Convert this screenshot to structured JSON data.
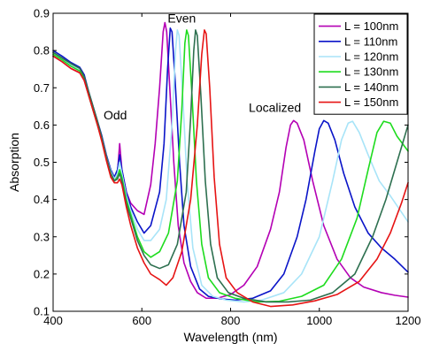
{
  "chart_data": {
    "type": "line",
    "xlabel": "Wavelength (nm)",
    "ylabel": "Absorption",
    "xlim": [
      400,
      1200
    ],
    "ylim": [
      0.1,
      0.9
    ],
    "xticks": [
      400,
      600,
      800,
      1000,
      1200
    ],
    "yticks": [
      0.1,
      0.2,
      0.3,
      0.4,
      0.5,
      0.6,
      0.7,
      0.8,
      0.9
    ],
    "grid": false,
    "legend_position": "top-right",
    "annotations": [
      {
        "text": "Odd",
        "x": 540,
        "y": 0.615
      },
      {
        "text": "Even",
        "x": 690,
        "y": 0.875
      },
      {
        "text": "Localized",
        "x": 900,
        "y": 0.635
      }
    ],
    "series": [
      {
        "name": "L = 100nm",
        "color": "#b400b4",
        "points": [
          [
            400,
            0.785
          ],
          [
            420,
            0.77
          ],
          [
            440,
            0.752
          ],
          [
            460,
            0.74
          ],
          [
            470,
            0.72
          ],
          [
            480,
            0.68
          ],
          [
            490,
            0.64
          ],
          [
            500,
            0.6
          ],
          [
            510,
            0.56
          ],
          [
            520,
            0.51
          ],
          [
            530,
            0.47
          ],
          [
            538,
            0.45
          ],
          [
            545,
            0.47
          ],
          [
            550,
            0.55
          ],
          [
            555,
            0.48
          ],
          [
            565,
            0.42
          ],
          [
            575,
            0.39
          ],
          [
            590,
            0.37
          ],
          [
            605,
            0.36
          ],
          [
            620,
            0.44
          ],
          [
            630,
            0.55
          ],
          [
            640,
            0.7
          ],
          [
            648,
            0.85
          ],
          [
            652,
            0.875
          ],
          [
            656,
            0.85
          ],
          [
            662,
            0.72
          ],
          [
            672,
            0.5
          ],
          [
            682,
            0.33
          ],
          [
            695,
            0.23
          ],
          [
            710,
            0.18
          ],
          [
            725,
            0.15
          ],
          [
            745,
            0.135
          ],
          [
            770,
            0.135
          ],
          [
            800,
            0.145
          ],
          [
            830,
            0.17
          ],
          [
            860,
            0.22
          ],
          [
            890,
            0.32
          ],
          [
            910,
            0.42
          ],
          [
            925,
            0.54
          ],
          [
            935,
            0.6
          ],
          [
            942,
            0.612
          ],
          [
            950,
            0.605
          ],
          [
            965,
            0.56
          ],
          [
            985,
            0.45
          ],
          [
            1010,
            0.33
          ],
          [
            1040,
            0.24
          ],
          [
            1070,
            0.19
          ],
          [
            1100,
            0.165
          ],
          [
            1140,
            0.15
          ],
          [
            1170,
            0.143
          ],
          [
            1200,
            0.138
          ]
        ]
      },
      {
        "name": "L = 110nm",
        "color": "#0a14c8",
        "points": [
          [
            400,
            0.8
          ],
          [
            420,
            0.785
          ],
          [
            440,
            0.768
          ],
          [
            460,
            0.755
          ],
          [
            470,
            0.735
          ],
          [
            480,
            0.69
          ],
          [
            490,
            0.65
          ],
          [
            500,
            0.61
          ],
          [
            510,
            0.57
          ],
          [
            520,
            0.52
          ],
          [
            530,
            0.48
          ],
          [
            538,
            0.46
          ],
          [
            545,
            0.48
          ],
          [
            550,
            0.52
          ],
          [
            555,
            0.48
          ],
          [
            565,
            0.42
          ],
          [
            575,
            0.38
          ],
          [
            590,
            0.34
          ],
          [
            605,
            0.31
          ],
          [
            620,
            0.33
          ],
          [
            640,
            0.42
          ],
          [
            650,
            0.55
          ],
          [
            658,
            0.75
          ],
          [
            664,
            0.86
          ],
          [
            668,
            0.85
          ],
          [
            675,
            0.72
          ],
          [
            685,
            0.5
          ],
          [
            695,
            0.33
          ],
          [
            710,
            0.22
          ],
          [
            730,
            0.16
          ],
          [
            750,
            0.14
          ],
          [
            780,
            0.133
          ],
          [
            810,
            0.13
          ],
          [
            850,
            0.135
          ],
          [
            890,
            0.155
          ],
          [
            920,
            0.2
          ],
          [
            950,
            0.3
          ],
          [
            970,
            0.4
          ],
          [
            990,
            0.53
          ],
          [
            1000,
            0.59
          ],
          [
            1010,
            0.612
          ],
          [
            1020,
            0.605
          ],
          [
            1035,
            0.56
          ],
          [
            1055,
            0.47
          ],
          [
            1080,
            0.38
          ],
          [
            1110,
            0.31
          ],
          [
            1140,
            0.27
          ],
          [
            1170,
            0.24
          ],
          [
            1200,
            0.205
          ]
        ]
      },
      {
        "name": "L = 120nm",
        "color": "#a8e4f8",
        "points": [
          [
            400,
            0.795
          ],
          [
            420,
            0.78
          ],
          [
            440,
            0.762
          ],
          [
            460,
            0.748
          ],
          [
            470,
            0.728
          ],
          [
            480,
            0.685
          ],
          [
            490,
            0.645
          ],
          [
            500,
            0.605
          ],
          [
            510,
            0.565
          ],
          [
            520,
            0.515
          ],
          [
            530,
            0.475
          ],
          [
            538,
            0.455
          ],
          [
            545,
            0.47
          ],
          [
            550,
            0.5
          ],
          [
            555,
            0.47
          ],
          [
            565,
            0.41
          ],
          [
            575,
            0.37
          ],
          [
            590,
            0.32
          ],
          [
            605,
            0.29
          ],
          [
            620,
            0.29
          ],
          [
            640,
            0.32
          ],
          [
            655,
            0.4
          ],
          [
            668,
            0.6
          ],
          [
            676,
            0.8
          ],
          [
            680,
            0.855
          ],
          [
            684,
            0.84
          ],
          [
            692,
            0.68
          ],
          [
            702,
            0.45
          ],
          [
            715,
            0.27
          ],
          [
            735,
            0.17
          ],
          [
            760,
            0.14
          ],
          [
            790,
            0.13
          ],
          [
            830,
            0.125
          ],
          [
            870,
            0.13
          ],
          [
            920,
            0.15
          ],
          [
            960,
            0.2
          ],
          [
            1000,
            0.3
          ],
          [
            1030,
            0.45
          ],
          [
            1050,
            0.56
          ],
          [
            1065,
            0.605
          ],
          [
            1075,
            0.61
          ],
          [
            1090,
            0.58
          ],
          [
            1110,
            0.52
          ],
          [
            1135,
            0.45
          ],
          [
            1160,
            0.41
          ],
          [
            1200,
            0.34
          ]
        ]
      },
      {
        "name": "L = 130nm",
        "color": "#1edc1e",
        "points": [
          [
            400,
            0.79
          ],
          [
            420,
            0.775
          ],
          [
            440,
            0.758
          ],
          [
            460,
            0.745
          ],
          [
            470,
            0.725
          ],
          [
            480,
            0.68
          ],
          [
            490,
            0.64
          ],
          [
            500,
            0.6
          ],
          [
            510,
            0.56
          ],
          [
            520,
            0.51
          ],
          [
            530,
            0.47
          ],
          [
            538,
            0.45
          ],
          [
            545,
            0.46
          ],
          [
            550,
            0.48
          ],
          [
            555,
            0.46
          ],
          [
            565,
            0.4
          ],
          [
            575,
            0.36
          ],
          [
            590,
            0.3
          ],
          [
            605,
            0.26
          ],
          [
            620,
            0.245
          ],
          [
            640,
            0.26
          ],
          [
            660,
            0.31
          ],
          [
            680,
            0.45
          ],
          [
            690,
            0.64
          ],
          [
            697,
            0.82
          ],
          [
            701,
            0.855
          ],
          [
            705,
            0.84
          ],
          [
            713,
            0.68
          ],
          [
            723,
            0.45
          ],
          [
            735,
            0.28
          ],
          [
            750,
            0.19
          ],
          [
            775,
            0.15
          ],
          [
            810,
            0.135
          ],
          [
            860,
            0.125
          ],
          [
            910,
            0.127
          ],
          [
            960,
            0.14
          ],
          [
            1010,
            0.17
          ],
          [
            1050,
            0.24
          ],
          [
            1085,
            0.35
          ],
          [
            1110,
            0.48
          ],
          [
            1130,
            0.58
          ],
          [
            1145,
            0.61
          ],
          [
            1160,
            0.605
          ],
          [
            1175,
            0.57
          ],
          [
            1200,
            0.53
          ]
        ]
      },
      {
        "name": "L = 140nm",
        "color": "#2e7050",
        "points": [
          [
            400,
            0.795
          ],
          [
            420,
            0.78
          ],
          [
            440,
            0.765
          ],
          [
            460,
            0.752
          ],
          [
            470,
            0.73
          ],
          [
            480,
            0.69
          ],
          [
            490,
            0.65
          ],
          [
            500,
            0.61
          ],
          [
            510,
            0.565
          ],
          [
            520,
            0.515
          ],
          [
            530,
            0.47
          ],
          [
            538,
            0.45
          ],
          [
            545,
            0.455
          ],
          [
            550,
            0.47
          ],
          [
            555,
            0.45
          ],
          [
            565,
            0.39
          ],
          [
            575,
            0.35
          ],
          [
            590,
            0.29
          ],
          [
            605,
            0.25
          ],
          [
            620,
            0.225
          ],
          [
            640,
            0.215
          ],
          [
            660,
            0.225
          ],
          [
            680,
            0.28
          ],
          [
            700,
            0.42
          ],
          [
            710,
            0.62
          ],
          [
            717,
            0.8
          ],
          [
            721,
            0.855
          ],
          [
            725,
            0.84
          ],
          [
            733,
            0.68
          ],
          [
            743,
            0.45
          ],
          [
            755,
            0.28
          ],
          [
            770,
            0.19
          ],
          [
            795,
            0.15
          ],
          [
            830,
            0.135
          ],
          [
            880,
            0.125
          ],
          [
            930,
            0.125
          ],
          [
            980,
            0.13
          ],
          [
            1030,
            0.15
          ],
          [
            1080,
            0.2
          ],
          [
            1120,
            0.3
          ],
          [
            1150,
            0.4
          ],
          [
            1175,
            0.5
          ],
          [
            1195,
            0.58
          ],
          [
            1200,
            0.6
          ]
        ]
      },
      {
        "name": "L = 150nm",
        "color": "#e61414",
        "points": [
          [
            400,
            0.785
          ],
          [
            420,
            0.77
          ],
          [
            440,
            0.752
          ],
          [
            460,
            0.74
          ],
          [
            470,
            0.72
          ],
          [
            480,
            0.68
          ],
          [
            490,
            0.64
          ],
          [
            500,
            0.6
          ],
          [
            510,
            0.555
          ],
          [
            520,
            0.505
          ],
          [
            530,
            0.46
          ],
          [
            538,
            0.445
          ],
          [
            545,
            0.445
          ],
          [
            550,
            0.455
          ],
          [
            555,
            0.44
          ],
          [
            565,
            0.38
          ],
          [
            575,
            0.33
          ],
          [
            590,
            0.27
          ],
          [
            605,
            0.23
          ],
          [
            620,
            0.2
          ],
          [
            640,
            0.185
          ],
          [
            655,
            0.17
          ],
          [
            670,
            0.19
          ],
          [
            690,
            0.26
          ],
          [
            710,
            0.4
          ],
          [
            725,
            0.6
          ],
          [
            735,
            0.79
          ],
          [
            741,
            0.855
          ],
          [
            745,
            0.845
          ],
          [
            753,
            0.7
          ],
          [
            763,
            0.46
          ],
          [
            775,
            0.28
          ],
          [
            790,
            0.19
          ],
          [
            815,
            0.15
          ],
          [
            850,
            0.125
          ],
          [
            890,
            0.113
          ],
          [
            940,
            0.117
          ],
          [
            990,
            0.128
          ],
          [
            1040,
            0.145
          ],
          [
            1090,
            0.18
          ],
          [
            1130,
            0.24
          ],
          [
            1160,
            0.31
          ],
          [
            1185,
            0.39
          ],
          [
            1200,
            0.445
          ]
        ]
      }
    ]
  }
}
